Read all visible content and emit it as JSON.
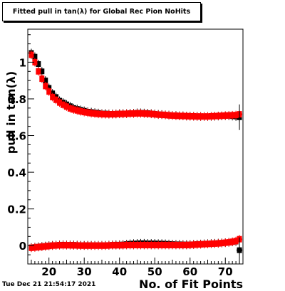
{
  "title": "Fitted pull in tan(λ) for Global Rec Pion NoHits",
  "timestamp": "Tue Dec 21 21:54:17 2021",
  "chart_data": {
    "type": "scatter",
    "xlabel": "No. of Fit Points",
    "ylabel": "pull in tan(λ)",
    "xlim": [
      14,
      75
    ],
    "ylim": [
      -0.1,
      1.18
    ],
    "x_ticks": [
      20,
      30,
      40,
      50,
      60,
      70
    ],
    "y_ticks": [
      0,
      0.2,
      0.4,
      0.6,
      0.8,
      1
    ],
    "y_tick_labels": [
      "0",
      "0.2",
      "0.4",
      "0.6",
      "0.8",
      "1"
    ],
    "x_tick_labels": [
      "20",
      "30",
      "40",
      "50",
      "60",
      "70"
    ],
    "grid": false,
    "legend": "none",
    "series": [
      {
        "marker": "square",
        "color": "#000000",
        "points_x": [
          15,
          16,
          17,
          18,
          19,
          20,
          21,
          22,
          23,
          24,
          25,
          26,
          27,
          28,
          29,
          30,
          31,
          32,
          33,
          34,
          35,
          36,
          37,
          38,
          39,
          40,
          41,
          42,
          43,
          44,
          45,
          46,
          47,
          48,
          49,
          50,
          51,
          52,
          53,
          54,
          55,
          56,
          57,
          58,
          59,
          60,
          61,
          62,
          63,
          64,
          65,
          66,
          67,
          68,
          69,
          70,
          71,
          72,
          73,
          74
        ],
        "points_y": [
          1.05,
          1.03,
          0.99,
          0.95,
          0.9,
          0.86,
          0.83,
          0.81,
          0.79,
          0.78,
          0.77,
          0.76,
          0.75,
          0.745,
          0.74,
          0.735,
          0.73,
          0.728,
          0.725,
          0.723,
          0.72,
          0.72,
          0.718,
          0.718,
          0.718,
          0.72,
          0.72,
          0.72,
          0.722,
          0.722,
          0.724,
          0.724,
          0.723,
          0.722,
          0.72,
          0.718,
          0.716,
          0.715,
          0.713,
          0.712,
          0.71,
          0.71,
          0.708,
          0.708,
          0.706,
          0.706,
          0.705,
          0.705,
          0.704,
          0.704,
          0.704,
          0.704,
          0.705,
          0.706,
          0.707,
          0.708,
          0.708,
          0.706,
          0.704,
          0.7
        ]
      },
      {
        "marker": "square",
        "color": "#ff0000",
        "points_x": [
          15,
          16,
          17,
          18,
          19,
          20,
          21,
          22,
          23,
          24,
          25,
          26,
          27,
          28,
          29,
          30,
          31,
          32,
          33,
          34,
          35,
          36,
          37,
          38,
          39,
          40,
          41,
          42,
          43,
          44,
          45,
          46,
          47,
          48,
          49,
          50,
          51,
          52,
          53,
          54,
          55,
          56,
          57,
          58,
          59,
          60,
          61,
          62,
          63,
          64,
          65,
          66,
          67,
          68,
          69,
          70,
          71,
          72,
          73,
          74
        ],
        "points_y": [
          1.04,
          1.0,
          0.95,
          0.91,
          0.87,
          0.84,
          0.81,
          0.795,
          0.78,
          0.768,
          0.758,
          0.748,
          0.742,
          0.737,
          0.732,
          0.728,
          0.725,
          0.722,
          0.72,
          0.718,
          0.717,
          0.716,
          0.716,
          0.716,
          0.717,
          0.718,
          0.718,
          0.719,
          0.72,
          0.72,
          0.721,
          0.721,
          0.72,
          0.719,
          0.718,
          0.716,
          0.714,
          0.713,
          0.712,
          0.71,
          0.709,
          0.708,
          0.707,
          0.707,
          0.706,
          0.705,
          0.705,
          0.704,
          0.704,
          0.704,
          0.704,
          0.705,
          0.706,
          0.707,
          0.708,
          0.709,
          0.71,
          0.711,
          0.712,
          0.716
        ]
      },
      {
        "marker": "square",
        "color": "#000000",
        "points_x": [
          15,
          16,
          17,
          18,
          19,
          20,
          21,
          22,
          23,
          24,
          25,
          26,
          27,
          28,
          29,
          30,
          31,
          32,
          33,
          34,
          35,
          36,
          37,
          38,
          39,
          40,
          41,
          42,
          43,
          44,
          45,
          46,
          47,
          48,
          49,
          50,
          51,
          52,
          53,
          54,
          55,
          56,
          57,
          58,
          59,
          60,
          61,
          62,
          63,
          64,
          65,
          66,
          67,
          68,
          69,
          70,
          71,
          72,
          73,
          74
        ],
        "points_y": [
          -0.01,
          -0.008,
          -0.006,
          -0.004,
          -0.002,
          0.0,
          0.002,
          0.003,
          0.004,
          0.005,
          0.004,
          0.004,
          0.004,
          0.003,
          0.002,
          0.002,
          0.002,
          0.002,
          0.002,
          0.002,
          0.002,
          0.002,
          0.003,
          0.004,
          0.005,
          0.005,
          0.006,
          0.008,
          0.01,
          0.011,
          0.012,
          0.013,
          0.013,
          0.012,
          0.012,
          0.012,
          0.011,
          0.011,
          0.01,
          0.009,
          0.008,
          0.007,
          0.007,
          0.006,
          0.006,
          0.006,
          0.007,
          0.008,
          0.009,
          0.01,
          0.011,
          0.012,
          0.013,
          0.014,
          0.015,
          0.016,
          0.018,
          0.02,
          0.022,
          -0.025
        ]
      },
      {
        "marker": "square",
        "color": "#ff0000",
        "points_x": [
          15,
          16,
          17,
          18,
          19,
          20,
          21,
          22,
          23,
          24,
          25,
          26,
          27,
          28,
          29,
          30,
          31,
          32,
          33,
          34,
          35,
          36,
          37,
          38,
          39,
          40,
          41,
          42,
          43,
          44,
          45,
          46,
          47,
          48,
          49,
          50,
          51,
          52,
          53,
          54,
          55,
          56,
          57,
          58,
          59,
          60,
          61,
          62,
          63,
          64,
          65,
          66,
          67,
          68,
          69,
          70,
          71,
          72,
          73,
          74
        ],
        "points_y": [
          -0.012,
          -0.01,
          -0.008,
          -0.006,
          -0.004,
          -0.002,
          0.0,
          0.001,
          0.002,
          0.002,
          0.002,
          0.002,
          0.001,
          0.001,
          0.0,
          0.0,
          0.0,
          0.0,
          0.0,
          0.0,
          0.0,
          0.0,
          0.001,
          0.002,
          0.002,
          0.002,
          0.002,
          0.003,
          0.003,
          0.003,
          0.003,
          0.003,
          0.003,
          0.003,
          0.003,
          0.003,
          0.003,
          0.003,
          0.003,
          0.003,
          0.003,
          0.003,
          0.003,
          0.003,
          0.003,
          0.004,
          0.005,
          0.006,
          0.007,
          0.008,
          0.009,
          0.01,
          0.011,
          0.012,
          0.014,
          0.016,
          0.018,
          0.021,
          0.025,
          0.035
        ]
      }
    ]
  }
}
